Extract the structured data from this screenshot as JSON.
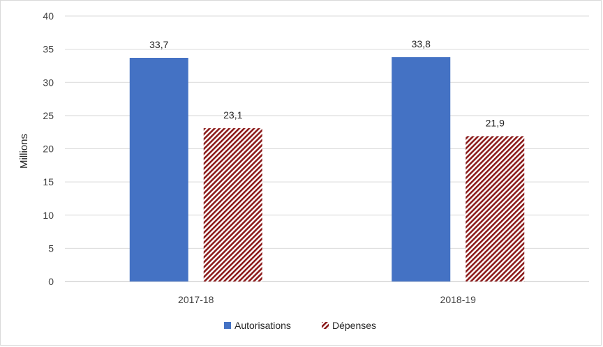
{
  "chart_data": {
    "type": "bar",
    "categories": [
      "2017-18",
      "2018-19"
    ],
    "series": [
      {
        "name": "Autorisations",
        "values": [
          33.7,
          33.8
        ],
        "labels": [
          "33,7",
          "33,8"
        ],
        "color": "#4472c4",
        "pattern": "solid"
      },
      {
        "name": "Dépenses",
        "values": [
          23.1,
          21.9
        ],
        "labels": [
          "23,1",
          "21,9"
        ],
        "color": "#8b1a1a",
        "pattern": "diagonal-stripes"
      }
    ],
    "title": "",
    "xlabel": "",
    "ylabel": "Millions",
    "ylim": [
      0,
      40
    ],
    "yticks": [
      0,
      5,
      10,
      15,
      20,
      25,
      30,
      35,
      40
    ],
    "grid": true,
    "legend": "bottom"
  }
}
